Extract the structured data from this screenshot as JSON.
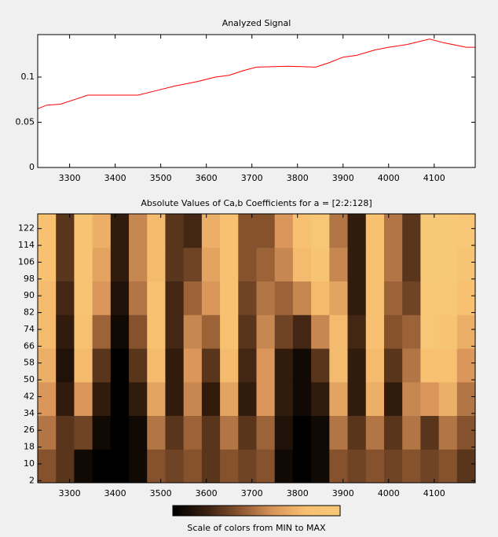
{
  "chart_data": [
    {
      "type": "line",
      "title": "Analyzed Signal",
      "color": "#ff0000",
      "x": [
        3230,
        3250,
        3280,
        3310,
        3340,
        3450,
        3490,
        3530,
        3580,
        3620,
        3650,
        3680,
        3710,
        3780,
        3840,
        3870,
        3900,
        3930,
        3970,
        4000,
        4040,
        4090,
        4120,
        4150,
        4170,
        4190
      ],
      "values": [
        0.065,
        0.069,
        0.07,
        0.075,
        0.08,
        0.08,
        0.085,
        0.09,
        0.095,
        0.1,
        0.102,
        0.107,
        0.111,
        0.112,
        0.111,
        0.116,
        0.122,
        0.124,
        0.13,
        0.133,
        0.136,
        0.142,
        0.138,
        0.135,
        0.133,
        0.133
      ],
      "xlim": [
        3230,
        4190
      ],
      "xticks": [
        3300,
        3400,
        3500,
        3600,
        3700,
        3800,
        3900,
        4000,
        4100
      ],
      "ylim": [
        0,
        0.147
      ],
      "yticks": [
        0,
        0.05,
        0.1
      ]
    },
    {
      "type": "heatmap",
      "title": "Absolute Values of Ca,b Coefficients for a =  [2:2:128]",
      "colorbar_label": "Scale of colors from MIN to MAX",
      "colormap": [
        "#000000",
        "#3a2010",
        "#8a5530",
        "#d9955a",
        "#f7c070",
        "#f7c878"
      ],
      "x": [
        3250,
        3290,
        3330,
        3370,
        3410,
        3450,
        3490,
        3530,
        3570,
        3610,
        3650,
        3690,
        3730,
        3770,
        3810,
        3850,
        3890,
        3930,
        3970,
        4010,
        4050,
        4090,
        4130,
        4170
      ],
      "y": [
        9,
        25,
        41,
        57,
        73,
        89,
        105,
        121
      ],
      "z": [
        [
          0.4,
          0.3,
          0.1,
          0.05,
          0.05,
          0.1,
          0.4,
          0.35,
          0.4,
          0.3,
          0.4,
          0.35,
          0.4,
          0.1,
          0.05,
          0.1,
          0.4,
          0.35,
          0.4,
          0.35,
          0.4,
          0.35,
          0.4,
          0.3
        ],
        [
          0.5,
          0.3,
          0.35,
          0.1,
          0.05,
          0.1,
          0.5,
          0.3,
          0.45,
          0.3,
          0.5,
          0.3,
          0.45,
          0.15,
          0.05,
          0.1,
          0.5,
          0.3,
          0.5,
          0.3,
          0.5,
          0.3,
          0.5,
          0.4
        ],
        [
          0.6,
          0.2,
          0.6,
          0.2,
          0.05,
          0.2,
          0.65,
          0.2,
          0.55,
          0.2,
          0.65,
          0.2,
          0.6,
          0.2,
          0.1,
          0.2,
          0.65,
          0.2,
          0.7,
          0.2,
          0.55,
          0.6,
          0.7,
          0.5
        ],
        [
          0.7,
          0.15,
          0.75,
          0.3,
          0.05,
          0.3,
          0.75,
          0.2,
          0.6,
          0.3,
          0.75,
          0.25,
          0.6,
          0.2,
          0.1,
          0.3,
          0.75,
          0.2,
          0.75,
          0.3,
          0.5,
          0.8,
          0.8,
          0.6
        ],
        [
          0.75,
          0.2,
          0.8,
          0.45,
          0.1,
          0.4,
          0.8,
          0.25,
          0.55,
          0.45,
          0.8,
          0.3,
          0.55,
          0.35,
          0.25,
          0.55,
          0.75,
          0.25,
          0.8,
          0.4,
          0.45,
          0.9,
          0.85,
          0.7
        ],
        [
          0.75,
          0.25,
          0.85,
          0.6,
          0.15,
          0.5,
          0.8,
          0.25,
          0.45,
          0.6,
          0.8,
          0.35,
          0.5,
          0.45,
          0.55,
          0.75,
          0.65,
          0.2,
          0.8,
          0.45,
          0.35,
          0.95,
          0.9,
          0.8
        ],
        [
          0.8,
          0.3,
          0.85,
          0.65,
          0.2,
          0.55,
          0.75,
          0.3,
          0.35,
          0.65,
          0.8,
          0.4,
          0.45,
          0.55,
          0.75,
          0.85,
          0.55,
          0.2,
          0.8,
          0.5,
          0.3,
          0.95,
          0.95,
          0.85
        ],
        [
          0.8,
          0.3,
          0.85,
          0.7,
          0.2,
          0.55,
          0.75,
          0.3,
          0.25,
          0.7,
          0.8,
          0.4,
          0.4,
          0.6,
          0.8,
          0.9,
          0.5,
          0.2,
          0.8,
          0.5,
          0.3,
          0.95,
          0.95,
          0.9
        ]
      ],
      "xlim": [
        3230,
        4190
      ],
      "xticks": [
        3300,
        3400,
        3500,
        3600,
        3700,
        3800,
        3900,
        4000,
        4100
      ],
      "ylim": [
        1,
        129
      ],
      "yticks": [
        2,
        10,
        18,
        26,
        34,
        42,
        50,
        58,
        66,
        74,
        82,
        90,
        98,
        106,
        114,
        122
      ]
    }
  ]
}
